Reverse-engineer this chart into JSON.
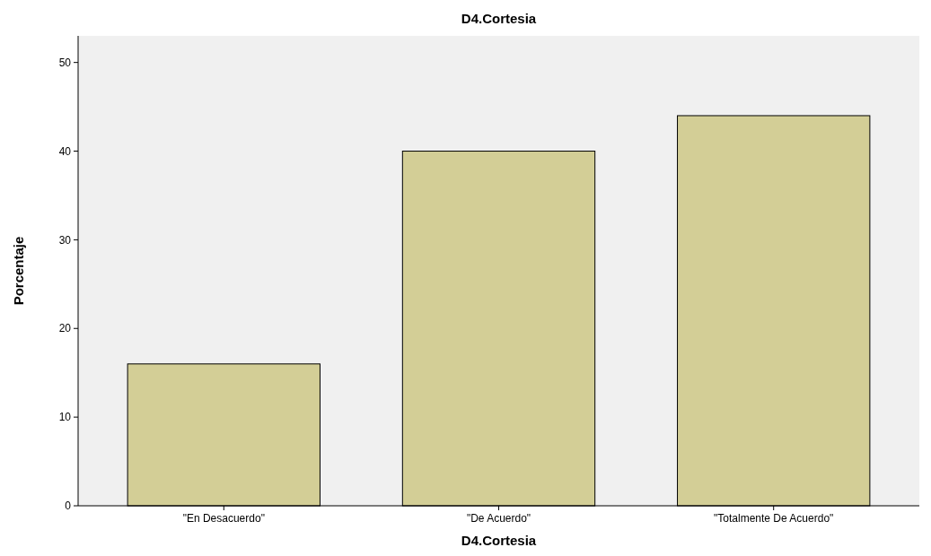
{
  "chart_data": {
    "type": "bar",
    "title": "D4.Cortesia",
    "xlabel": "D4.Cortesia",
    "ylabel": "Porcentaje",
    "categories": [
      "\"En Desacuerdo\"",
      "\"De Acuerdo\"",
      "\"Totalmente De Acuerdo\""
    ],
    "values": [
      16,
      40,
      44
    ],
    "color": "#d3ce96",
    "ylim": [
      0,
      53
    ],
    "yticks": [
      0,
      10,
      20,
      30,
      40,
      50
    ],
    "grid": false
  }
}
